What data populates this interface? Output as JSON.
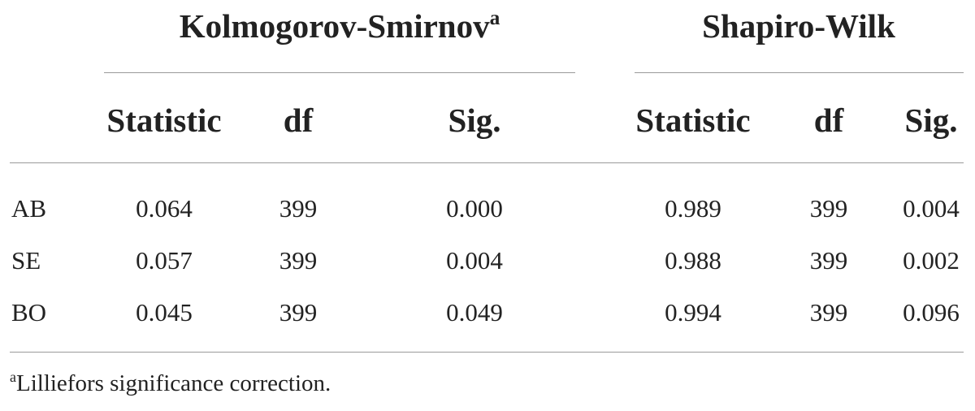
{
  "table": {
    "groups": [
      {
        "title": "Kolmogorov-Smirnov",
        "marker": "a"
      },
      {
        "title": "Shapiro-Wilk",
        "marker": ""
      }
    ],
    "columns": [
      "Statistic",
      "df",
      "Sig.",
      "Statistic",
      "df",
      "Sig."
    ],
    "rows": [
      {
        "label": "AB",
        "values": [
          "0.064",
          "399",
          "0.000",
          "0.989",
          "399",
          "0.004"
        ]
      },
      {
        "label": "SE",
        "values": [
          "0.057",
          "399",
          "0.004",
          "0.988",
          "399",
          "0.002"
        ]
      },
      {
        "label": "BO",
        "values": [
          "0.045",
          "399",
          "0.049",
          "0.994",
          "399",
          "0.096"
        ]
      }
    ]
  },
  "footnote": {
    "marker": "a",
    "text": "Lilliefors significance correction."
  }
}
